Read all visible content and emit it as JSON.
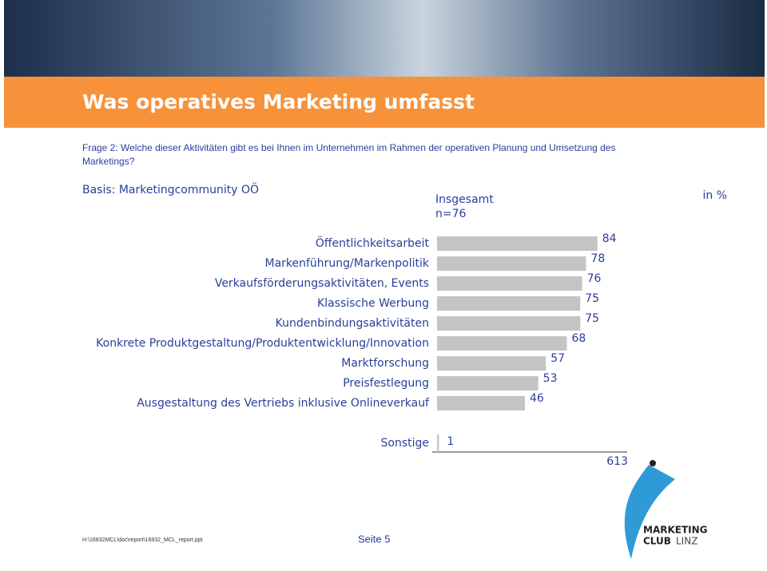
{
  "header": {
    "title": "Was operatives Marketing umfasst"
  },
  "question": {
    "line1": "Frage 2: Welche dieser Aktivitäten gibt es bei Ihnen im Unternehmen im Rahmen der operativen Planung und Umsetzung des",
    "line2": "Marketings?"
  },
  "basis": "Basis: Marketingcommunity OÖ",
  "column": {
    "label": "Insgesamt",
    "n": "n=76",
    "unit": "in %"
  },
  "chart_data": {
    "type": "bar",
    "orientation": "horizontal",
    "color": "#c4c4c4",
    "categories": [
      "Öffentlichkeitsarbeit",
      "Markenführung/Markenpolitik",
      "Verkaufsförderungsaktivitäten, Events",
      "Klassische Werbung",
      "Kundenbindungsaktivitäten",
      "Konkrete Produktgestaltung/Produktentwicklung/Innovation",
      "Marktforschung",
      "Preisfestlegung",
      "Ausgestaltung des Vertriebs inklusive Onlineverkauf",
      "Sonstige"
    ],
    "values": [
      84,
      78,
      76,
      75,
      75,
      68,
      57,
      53,
      46,
      1
    ],
    "xlim": [
      0,
      100
    ],
    "total": 613
  },
  "footer": {
    "path": "H:\\16832MCL\\doc\\report\\16832_MCL_report.ppt",
    "page": "Seite 5"
  },
  "logo": {
    "line1": "MARKETING",
    "line2": "CLUB",
    "line3": "LINZ"
  }
}
